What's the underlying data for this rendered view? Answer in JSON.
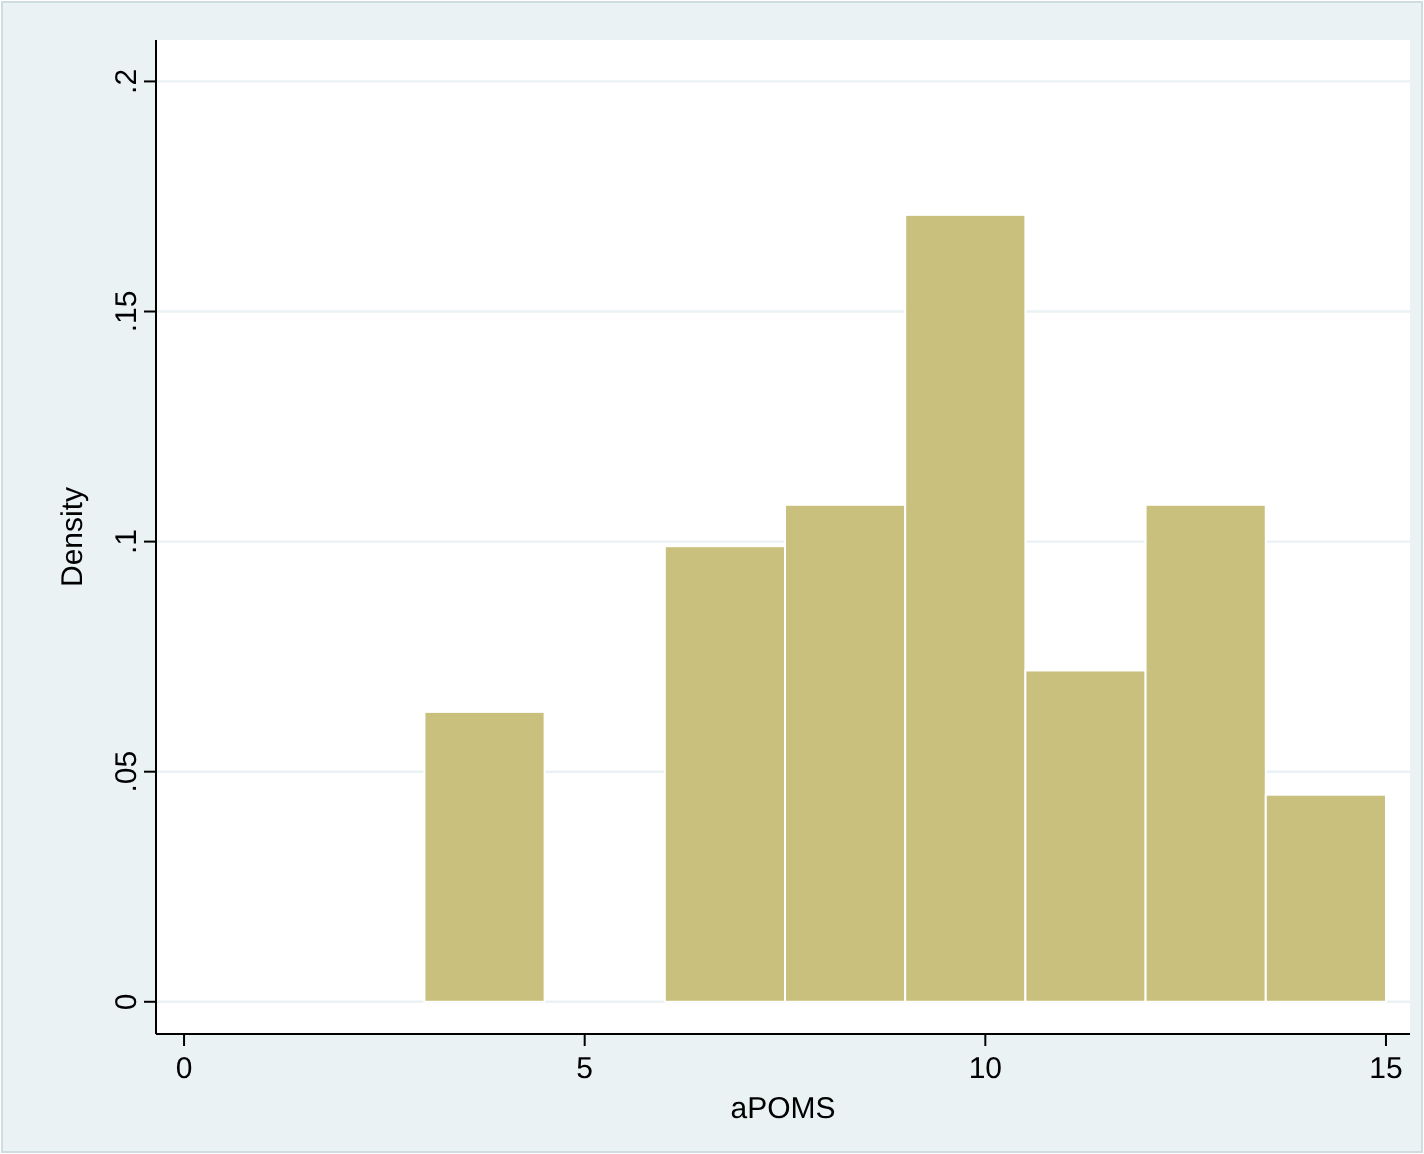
{
  "chart_data": {
    "type": "histogram",
    "xlabel": "aPOMS",
    "ylabel": "Density",
    "bins": [
      3,
      4.5,
      6,
      7.5,
      9,
      10.5,
      12,
      13.5,
      15
    ],
    "values": [
      0.063,
      0,
      0.099,
      0.108,
      0.171,
      0.072,
      0.108,
      0.045
    ],
    "color": "#c9c07e",
    "xlim": [
      -0.35,
      15.3
    ],
    "ylim": [
      -0.007,
      0.209
    ],
    "xticks": [
      0,
      5,
      10,
      15
    ],
    "yticks": [
      {
        "value": 0,
        "label": "0"
      },
      {
        "value": 0.05,
        "label": ".05"
      },
      {
        "value": 0.1,
        "label": ".1"
      },
      {
        "value": 0.15,
        "label": ".15"
      },
      {
        "value": 0.2,
        "label": ".2"
      }
    ],
    "grid": "y"
  }
}
